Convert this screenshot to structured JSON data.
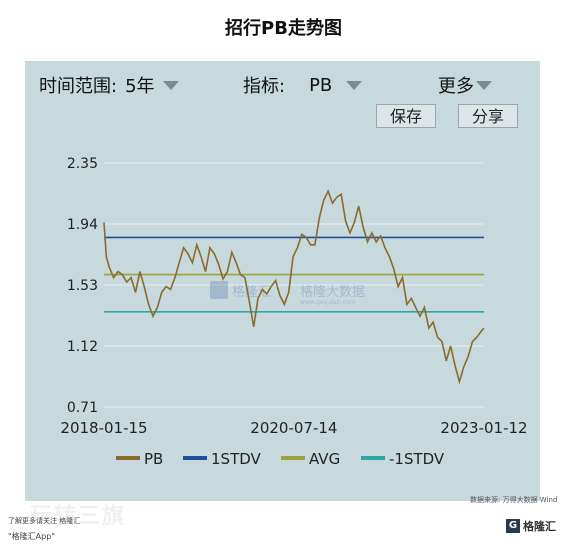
{
  "page": {
    "title": "招行PB走势图",
    "controls": {
      "range_label": "时间范围:",
      "range_value": "5年",
      "indicator_label": "指标:",
      "indicator_value": "PB",
      "more_label": "更多"
    },
    "buttons": {
      "save": "保存",
      "share": "分享"
    },
    "footer": {
      "source": "数据来源: 万得大数据 Wind",
      "left_note": "了解更多请关注 格隆汇",
      "left_note2": "\"格隆汇App\"",
      "logo_text": "格隆汇",
      "logo_mark": "G",
      "ghost_text": "玩转三旗"
    },
    "watermark": {
      "brand": "格隆汇",
      "text": "格隆大数据",
      "url": "www.gog.dati.com"
    }
  },
  "chart_data": {
    "type": "line",
    "title": "招行PB走势图",
    "xlabel": "",
    "ylabel": "",
    "x_ticks": [
      "2018-01-15",
      "2020-07-14",
      "2023-01-12"
    ],
    "y_ticks": [
      "2.35",
      "1.94",
      "1.53",
      "1.12",
      "0.71"
    ],
    "ylim": [
      0.71,
      2.35
    ],
    "grid": "horizontal",
    "legend_position": "bottom",
    "legend": [
      "PB",
      "1STDV",
      "AVG",
      "-1STDV"
    ],
    "reference_lines": [
      {
        "name": "1STDV",
        "value": 1.85,
        "color": "#1f4e9e"
      },
      {
        "name": "AVG",
        "value": 1.6,
        "color": "#9aa33b"
      },
      {
        "name": "-1STDV",
        "value": 1.35,
        "color": "#2aa7a6"
      }
    ],
    "series": [
      {
        "name": "PB",
        "color": "#8a6a2e",
        "x": [
          "2018-01-15",
          "2018-01-26",
          "2018-02-09",
          "2018-03-02",
          "2018-03-23",
          "2018-04-13",
          "2018-05-04",
          "2018-05-25",
          "2018-06-15",
          "2018-07-06",
          "2018-07-27",
          "2018-08-17",
          "2018-09-07",
          "2018-09-28",
          "2018-10-19",
          "2018-11-09",
          "2018-11-30",
          "2018-12-21",
          "2019-01-11",
          "2019-02-01",
          "2019-02-22",
          "2019-03-15",
          "2019-04-05",
          "2019-04-26",
          "2019-05-17",
          "2019-06-07",
          "2019-06-28",
          "2019-07-19",
          "2019-08-09",
          "2019-08-30",
          "2019-09-20",
          "2019-10-11",
          "2019-11-01",
          "2019-11-22",
          "2019-12-13",
          "2020-01-03",
          "2020-01-24",
          "2020-02-14",
          "2020-03-06",
          "2020-03-27",
          "2020-04-17",
          "2020-05-08",
          "2020-05-29",
          "2020-06-19",
          "2020-07-10",
          "2020-07-31",
          "2020-08-21",
          "2020-09-11",
          "2020-10-02",
          "2020-10-23",
          "2020-11-13",
          "2020-12-04",
          "2020-12-25",
          "2021-01-15",
          "2021-02-05",
          "2021-02-26",
          "2021-03-19",
          "2021-04-09",
          "2021-04-30",
          "2021-05-21",
          "2021-06-11",
          "2021-07-02",
          "2021-07-23",
          "2021-08-13",
          "2021-09-03",
          "2021-09-24",
          "2021-10-15",
          "2021-11-05",
          "2021-11-26",
          "2021-12-17",
          "2022-01-07",
          "2022-01-28",
          "2022-02-18",
          "2022-03-11",
          "2022-04-01",
          "2022-04-22",
          "2022-05-13",
          "2022-06-03",
          "2022-06-24",
          "2022-07-15",
          "2022-08-05",
          "2022-08-26",
          "2022-09-16",
          "2022-10-07",
          "2022-10-28",
          "2022-11-18",
          "2022-12-09",
          "2022-12-30",
          "2023-01-12"
        ],
        "values": [
          1.95,
          1.72,
          1.65,
          1.58,
          1.62,
          1.6,
          1.55,
          1.58,
          1.48,
          1.62,
          1.52,
          1.4,
          1.32,
          1.38,
          1.48,
          1.52,
          1.5,
          1.58,
          1.68,
          1.78,
          1.74,
          1.68,
          1.8,
          1.72,
          1.62,
          1.78,
          1.74,
          1.67,
          1.57,
          1.62,
          1.75,
          1.68,
          1.6,
          1.58,
          1.42,
          1.25,
          1.44,
          1.5,
          1.47,
          1.52,
          1.56,
          1.46,
          1.4,
          1.48,
          1.72,
          1.78,
          1.87,
          1.85,
          1.8,
          1.8,
          1.98,
          2.1,
          2.16,
          2.08,
          2.12,
          2.14,
          1.96,
          1.88,
          1.95,
          2.06,
          1.92,
          1.82,
          1.88,
          1.82,
          1.86,
          1.78,
          1.72,
          1.64,
          1.52,
          1.58,
          1.4,
          1.44,
          1.38,
          1.32,
          1.38,
          1.24,
          1.28,
          1.18,
          1.15,
          1.02,
          1.12,
          0.99,
          0.88,
          0.98,
          1.05,
          1.15,
          1.18,
          1.22,
          1.24
        ]
      }
    ]
  }
}
